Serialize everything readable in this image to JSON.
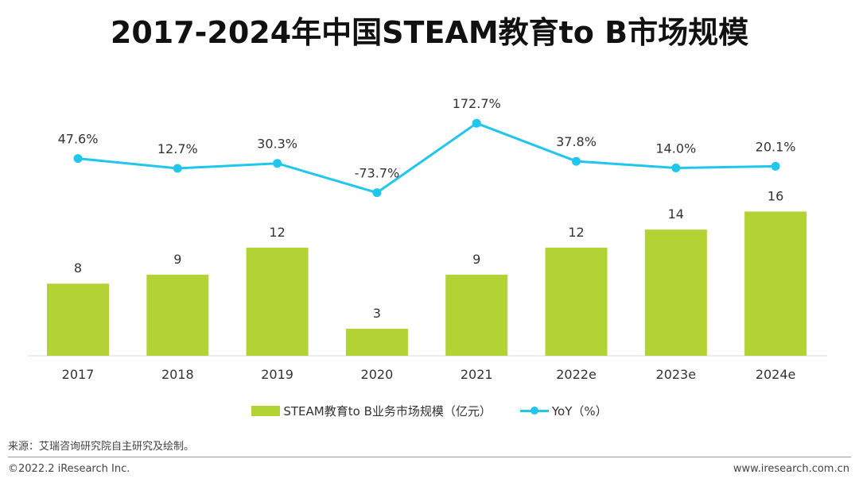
{
  "colors": {
    "bar": "#b3d334",
    "line": "#1fc6ee",
    "axis": "#d9d9d9",
    "text": "#333333"
  },
  "chart_data": {
    "type": "bar",
    "title": "2017-2024年中国STEAM教育to B市场规模",
    "categories": [
      "2017",
      "2018",
      "2019",
      "2020",
      "2021",
      "2022e",
      "2023e",
      "2024e"
    ],
    "series": [
      {
        "name": "STEAM教育to B业务市场规模（亿元）",
        "type": "bar",
        "values": [
          8,
          9,
          12,
          3,
          9,
          12,
          14,
          16
        ],
        "labels": [
          "8",
          "9",
          "12",
          "3",
          "9",
          "12",
          "14",
          "16"
        ]
      },
      {
        "name": "YoY（%）",
        "type": "line",
        "values": [
          47.6,
          12.7,
          30.3,
          -73.7,
          172.7,
          37.8,
          14.0,
          20.1
        ],
        "labels": [
          "47.6%",
          "12.7%",
          "30.3%",
          "-73.7%",
          "172.7%",
          "37.8%",
          "14.0%",
          "20.1%"
        ]
      }
    ],
    "xlabel": "",
    "ylabel": "",
    "legend": "bottom-center"
  },
  "footer": {
    "source": "来源：艾瑞咨询研究院自主研究及绘制。",
    "copyright": "©2022.2 iResearch Inc.",
    "website": "www.iresearch.com.cn"
  }
}
